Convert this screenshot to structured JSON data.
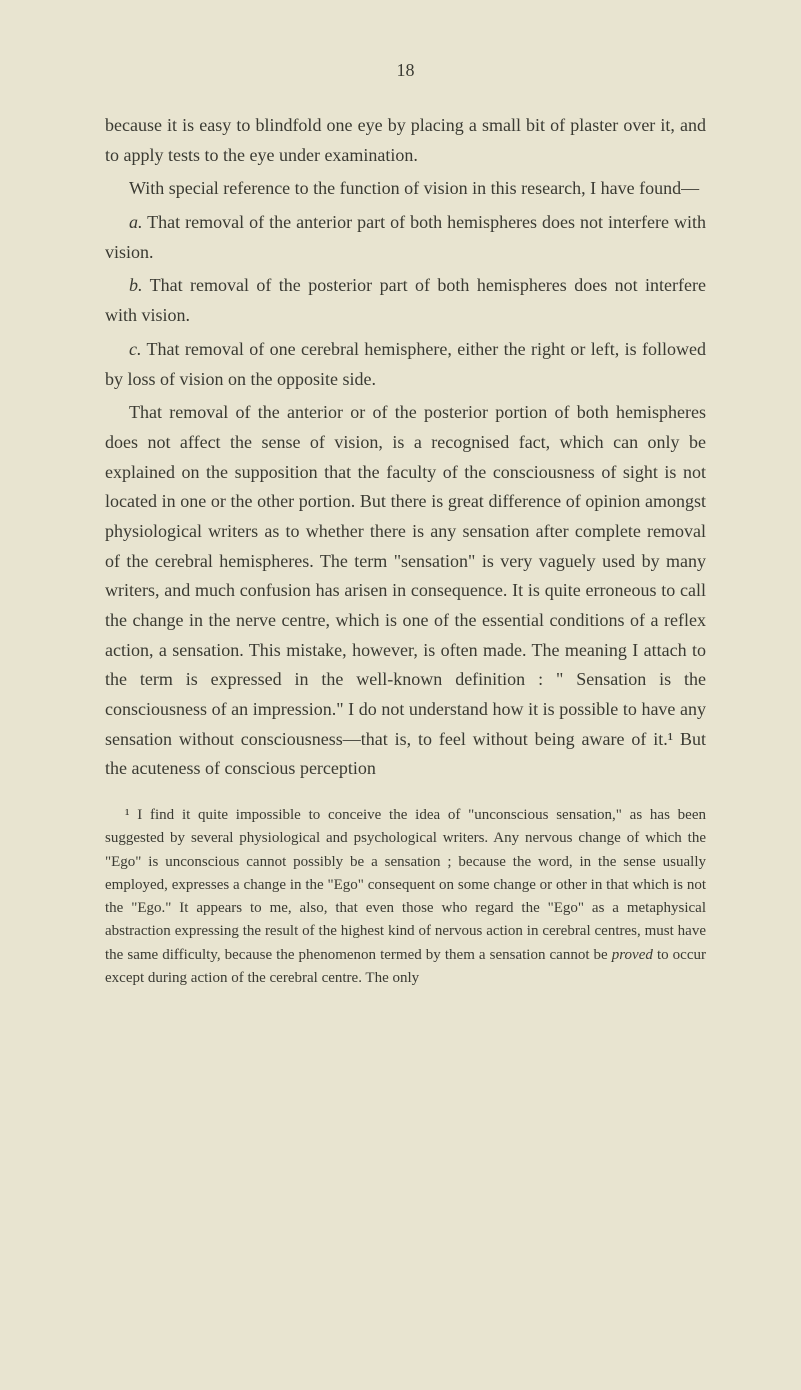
{
  "page_number": "18",
  "paragraphs": {
    "p1": "because it is easy to blindfold one eye by placing a small bit of plaster over it, and to apply tests to the eye under examination.",
    "p2": "With special reference to the function of vision in this research, I have found—",
    "p3_label": "a.",
    "p3_text": " That removal of the anterior part of both hemispheres does not interfere with vision.",
    "p4_label": "b.",
    "p4_text": " That removal of the posterior part of both hemispheres does not interfere with vision.",
    "p5_label": "c.",
    "p5_text": " That removal of one cerebral hemisphere, either the right or left, is followed by loss of vision on the opposite side.",
    "p6": "That removal of the anterior or of the posterior portion of both hemispheres does not affect the sense of vision, is a recognised fact, which can only be explained on the supposition that the faculty of the consciousness of sight is not located in one or the other portion. But there is great difference of opinion amongst physiological writers as to whether there is any sensation after complete removal of the cerebral hemispheres. The term \"sensation\" is very vaguely used by many writers, and much confusion has arisen in consequence. It is quite erroneous to call the change in the nerve centre, which is one of the essential conditions of a reflex action, a sensation. This mistake, however, is often made. The meaning I attach to the term is expressed in the well-known definition : \" Sensation is the consciousness of an impression.\" I do not understand how it is possible to have any sensation without consciousness—that is, to feel without being aware of it.¹ But the acuteness of conscious perception"
  },
  "footnote": {
    "marker": "¹",
    "text_part1": " I find it quite impossible to conceive the idea of \"unconscious sensation,\" as has been suggested by several physiological and psychological writers. Any nervous change of which the \"Ego\" is unconscious cannot possibly be a sensation ; because the word, in the sense usually employed, expresses a change in the \"Ego\" consequent on some change or other in that which is not the \"Ego.\" ",
    "text_part2": "It appears to me, also, that even those who regard the \"Ego\" as a metaphysical abstraction expressing the result of the highest kind of nervous action in cerebral centres, must have the same difficulty, because the phenomenon termed by them a sensation cannot be ",
    "italic_word": "proved",
    "text_part3": " to occur except during action of the cerebral centre. The only"
  },
  "colors": {
    "background": "#e8e4d0",
    "text": "#3a3a32"
  },
  "typography": {
    "body_fontsize": 18,
    "footnote_fontsize": 15,
    "line_height": 1.65,
    "font_family": "Georgia, Times New Roman, serif"
  }
}
